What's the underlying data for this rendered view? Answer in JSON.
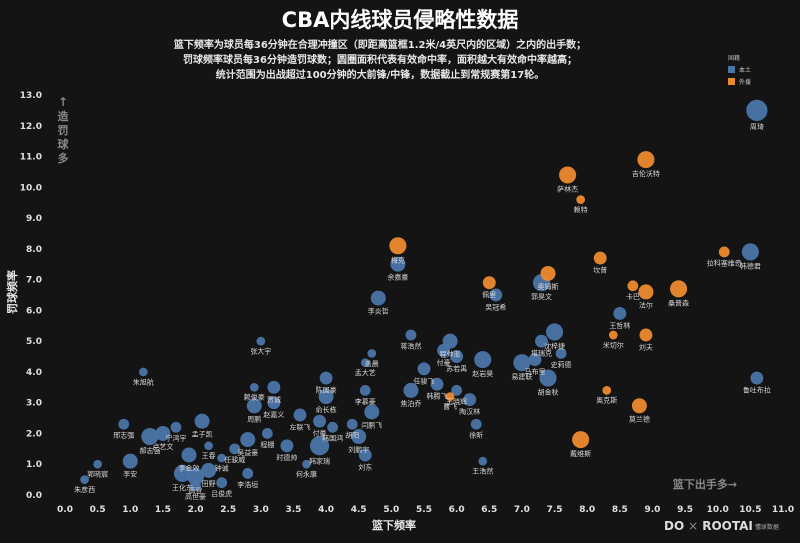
{
  "title": "CBA内线球员侵略性数据",
  "subtitle": [
    "篮下频率为球员每36分钟在合理冲撞区（即距离篮框1.2米/4英尺内的区域）之内的出手数；",
    "罚球频率球员每36分钟造罚球数；圆圈面积代表有效命中率，面积越大有效命中率越高；",
    "统计范围为出战超过100分钟的大前锋/中锋，数据截止到常规赛第17轮。"
  ],
  "footer": {
    "logo_left": "DO",
    "separator": "×",
    "logo_right": "ROOTAI",
    "logo_sub": "懂球数据"
  },
  "chart_data": {
    "type": "scatter",
    "xlabel": "篮下频率",
    "ylabel": "罚球频率",
    "xlim": [
      0,
      11
    ],
    "ylim": [
      0,
      13
    ],
    "xticks": [
      "0.0",
      "0.5",
      "1.0",
      "1.5",
      "2.0",
      "2.5",
      "3.0",
      "3.5",
      "4.0",
      "4.5",
      "5.0",
      "5.5",
      "6.0",
      "6.5",
      "7.0",
      "7.5",
      "8.0",
      "8.5",
      "9.0",
      "9.5",
      "10.0",
      "10.5",
      "11.0"
    ],
    "yticks": [
      "0.0",
      "1.0",
      "2.0",
      "3.0",
      "4.0",
      "5.0",
      "6.0",
      "7.0",
      "8.0",
      "9.0",
      "10.0",
      "11.0",
      "12.0",
      "13.0"
    ],
    "grid": false,
    "legend": {
      "title": "国籍",
      "position": "top-right",
      "entries": [
        {
          "name": "本土",
          "color": "#4a74a8"
        },
        {
          "name": "外援",
          "color": "#ec8a2e"
        }
      ]
    },
    "annotations": {
      "y_arrow": "↑",
      "y_text": [
        "造",
        "罚",
        "球",
        "多"
      ],
      "x_text": "篮下出手多→"
    },
    "points": [
      {
        "name": "周琦",
        "x": 10.6,
        "y": 12.5,
        "s": 9,
        "g": 0
      },
      {
        "name": "韩德君",
        "x": 10.5,
        "y": 7.9,
        "s": 7,
        "g": 0
      },
      {
        "name": "拉科塞维奇",
        "x": 10.1,
        "y": 7.9,
        "s": 4,
        "g": 1
      },
      {
        "name": "吉伦沃特",
        "x": 8.9,
        "y": 10.9,
        "s": 7,
        "g": 1
      },
      {
        "name": "萨林杰",
        "x": 7.7,
        "y": 10.4,
        "s": 7,
        "g": 1
      },
      {
        "name": "赖特",
        "x": 7.9,
        "y": 9.6,
        "s": 3,
        "g": 1
      },
      {
        "name": "坎普",
        "x": 8.2,
        "y": 7.7,
        "s": 5,
        "g": 1
      },
      {
        "name": "卡巴",
        "x": 8.7,
        "y": 6.8,
        "s": 4,
        "g": 1
      },
      {
        "name": "桑普森",
        "x": 9.4,
        "y": 6.7,
        "s": 7,
        "g": 1
      },
      {
        "name": "法尔",
        "x": 8.9,
        "y": 6.6,
        "s": 6,
        "g": 1
      },
      {
        "name": "王哲林",
        "x": 8.5,
        "y": 5.9,
        "s": 5,
        "g": 0
      },
      {
        "name": "米切尔",
        "x": 8.4,
        "y": 5.2,
        "s": 3,
        "g": 1
      },
      {
        "name": "刘夫",
        "x": 8.9,
        "y": 5.2,
        "s": 5,
        "g": 1
      },
      {
        "name": "鲁吐布拉",
        "x": 10.6,
        "y": 3.8,
        "s": 5,
        "g": 0
      },
      {
        "name": "奥克斯",
        "x": 8.3,
        "y": 3.4,
        "s": 3,
        "g": 1
      },
      {
        "name": "莫兰德",
        "x": 8.8,
        "y": 2.9,
        "s": 6,
        "g": 1
      },
      {
        "name": "戴维斯",
        "x": 7.9,
        "y": 1.8,
        "s": 7,
        "g": 1
      },
      {
        "name": "梅克",
        "x": 5.1,
        "y": 8.1,
        "s": 7,
        "g": 1
      },
      {
        "name": "余嘉豪",
        "x": 5.1,
        "y": 7.5,
        "s": 6,
        "g": 0
      },
      {
        "name": "奥姆斯",
        "x": 7.4,
        "y": 7.2,
        "s": 6,
        "g": 1
      },
      {
        "name": "郭昊文",
        "x": 7.3,
        "y": 6.9,
        "s": 7,
        "g": 0
      },
      {
        "name": "佩里",
        "x": 6.5,
        "y": 6.9,
        "s": 5,
        "g": 1
      },
      {
        "name": "吴冠希",
        "x": 6.6,
        "y": 6.5,
        "s": 5,
        "g": 0
      },
      {
        "name": "李炎哲",
        "x": 4.8,
        "y": 6.4,
        "s": 6,
        "g": 0
      },
      {
        "name": "沈梓捷",
        "x": 7.5,
        "y": 5.3,
        "s": 7,
        "g": 0
      },
      {
        "name": "塔瑞克",
        "x": 7.3,
        "y": 5.0,
        "s": 5,
        "g": 0
      },
      {
        "name": "程帅澎",
        "x": 5.9,
        "y": 5.0,
        "s": 6,
        "g": 0
      },
      {
        "name": "蒋浩然",
        "x": 5.3,
        "y": 5.2,
        "s": 4,
        "g": 0
      },
      {
        "name": "付豪",
        "x": 5.8,
        "y": 4.7,
        "s": 5,
        "g": 0
      },
      {
        "name": "史莉德",
        "x": 7.6,
        "y": 4.6,
        "s": 4,
        "g": 0
      },
      {
        "name": "马布里",
        "x": 7.2,
        "y": 4.4,
        "s": 5,
        "g": 0
      },
      {
        "name": "胡金秋",
        "x": 7.4,
        "y": 3.8,
        "s": 7,
        "g": 0
      },
      {
        "name": "易建联",
        "x": 7.0,
        "y": 4.3,
        "s": 7,
        "g": 0
      },
      {
        "name": "赵岩昊",
        "x": 6.4,
        "y": 4.4,
        "s": 7,
        "g": 0
      },
      {
        "name": "苏若禹",
        "x": 6.0,
        "y": 4.5,
        "s": 5,
        "g": 0
      },
      {
        "name": "任骏飞",
        "x": 5.5,
        "y": 4.1,
        "s": 5,
        "g": 0
      },
      {
        "name": "盖晨",
        "x": 4.7,
        "y": 4.6,
        "s": 3,
        "g": 0
      },
      {
        "name": "孟大艺",
        "x": 4.6,
        "y": 4.3,
        "s": 3,
        "g": 0
      },
      {
        "name": "陈国豪",
        "x": 4.0,
        "y": 3.8,
        "s": 5,
        "g": 0
      },
      {
        "name": "李慕豪",
        "x": 4.6,
        "y": 3.4,
        "s": 4,
        "g": 0
      },
      {
        "name": "焦泊乔",
        "x": 5.3,
        "y": 3.4,
        "s": 6,
        "g": 0
      },
      {
        "name": "韩腾飞",
        "x": 5.7,
        "y": 3.6,
        "s": 5,
        "g": 0
      },
      {
        "name": "王晓辉",
        "x": 6.0,
        "y": 3.4,
        "s": 4,
        "g": 0
      },
      {
        "name": "陶汉林",
        "x": 6.2,
        "y": 3.1,
        "s": 5,
        "g": 0
      },
      {
        "name": "曹飞",
        "x": 5.9,
        "y": 3.2,
        "s": 3,
        "g": 1
      },
      {
        "name": "俞长栋",
        "x": 4.0,
        "y": 3.2,
        "s": 6,
        "g": 0
      },
      {
        "name": "闫鹏飞",
        "x": 4.7,
        "y": 2.7,
        "s": 6,
        "g": 0
      },
      {
        "name": "胡阳",
        "x": 4.4,
        "y": 2.3,
        "s": 4,
        "g": 0
      },
      {
        "name": "刘鹏宇",
        "x": 4.5,
        "y": 1.9,
        "s": 6,
        "g": 0
      },
      {
        "name": "韩国鸿",
        "x": 4.1,
        "y": 2.2,
        "s": 4,
        "g": 0
      },
      {
        "name": "付豪2",
        "x": 3.9,
        "y": 2.4,
        "s": 5,
        "g": 0
      },
      {
        "name": "徐昕",
        "x": 6.3,
        "y": 2.3,
        "s": 4,
        "g": 0
      },
      {
        "name": "王浩然",
        "x": 6.4,
        "y": 1.1,
        "s": 3,
        "g": 0
      },
      {
        "name": "刘东",
        "x": 4.6,
        "y": 1.3,
        "s": 5,
        "g": 0
      },
      {
        "name": "韩家瑞",
        "x": 3.9,
        "y": 1.6,
        "s": 8,
        "g": 0
      },
      {
        "name": "何永康",
        "x": 3.7,
        "y": 1.0,
        "s": 3,
        "g": 0
      },
      {
        "name": "时德帅",
        "x": 3.4,
        "y": 1.6,
        "s": 5,
        "g": 0
      },
      {
        "name": "张大宇",
        "x": 3.0,
        "y": 5.0,
        "s": 3,
        "g": 0
      },
      {
        "name": "贾诚",
        "x": 3.2,
        "y": 3.5,
        "s": 5,
        "g": 0
      },
      {
        "name": "赖俊豪",
        "x": 2.9,
        "y": 3.5,
        "s": 3,
        "g": 0
      },
      {
        "name": "左联飞",
        "x": 3.6,
        "y": 2.6,
        "s": 5,
        "g": 0
      },
      {
        "name": "赵嘉义",
        "x": 3.2,
        "y": 3.0,
        "s": 5,
        "g": 0
      },
      {
        "name": "周鹏",
        "x": 2.9,
        "y": 2.9,
        "s": 6,
        "g": 0
      },
      {
        "name": "程棚",
        "x": 3.1,
        "y": 2.0,
        "s": 4,
        "g": 0
      },
      {
        "name": "吴益豪",
        "x": 2.8,
        "y": 1.8,
        "s": 6,
        "g": 0
      },
      {
        "name": "任骏威",
        "x": 2.6,
        "y": 1.5,
        "s": 4,
        "g": 0
      },
      {
        "name": "钟诚",
        "x": 2.4,
        "y": 1.2,
        "s": 3,
        "g": 0
      },
      {
        "name": "孟子凯",
        "x": 2.1,
        "y": 2.4,
        "s": 6,
        "g": 0
      },
      {
        "name": "王春",
        "x": 2.2,
        "y": 1.6,
        "s": 3,
        "g": 0
      },
      {
        "name": "田野",
        "x": 2.2,
        "y": 0.8,
        "s": 6,
        "g": 0
      },
      {
        "name": "李浩垣",
        "x": 2.8,
        "y": 0.7,
        "s": 4,
        "g": 0
      },
      {
        "name": "吕俊虎",
        "x": 2.4,
        "y": 0.4,
        "s": 4,
        "g": 0
      },
      {
        "name": "宁鸿宇",
        "x": 1.7,
        "y": 2.2,
        "s": 4,
        "g": 0
      },
      {
        "name": "卢艺文",
        "x": 1.5,
        "y": 2.0,
        "s": 6,
        "g": 0
      },
      {
        "name": "李金效",
        "x": 1.9,
        "y": 1.3,
        "s": 6,
        "g": 0
      },
      {
        "name": "郝志强",
        "x": 1.3,
        "y": 1.9,
        "s": 7,
        "g": 0
      },
      {
        "name": "王化东",
        "x": 1.8,
        "y": 0.7,
        "s": 7,
        "g": 0
      },
      {
        "name": "高登",
        "x": 2.0,
        "y": 0.6,
        "s": 7,
        "g": 0
      },
      {
        "name": "高世豪",
        "x": 2.0,
        "y": 0.3,
        "s": 4,
        "g": 0
      },
      {
        "name": "邢志强",
        "x": 0.9,
        "y": 2.3,
        "s": 4,
        "g": 0
      },
      {
        "name": "朱旭航",
        "x": 1.2,
        "y": 4.0,
        "s": 3,
        "g": 0
      },
      {
        "name": "李安",
        "x": 1.0,
        "y": 1.1,
        "s": 6,
        "g": 0
      },
      {
        "name": "郭晓宸",
        "x": 0.5,
        "y": 1.0,
        "s": 3,
        "g": 0
      },
      {
        "name": "朱彦西",
        "x": 0.3,
        "y": 0.5,
        "s": 3,
        "g": 0
      }
    ]
  }
}
